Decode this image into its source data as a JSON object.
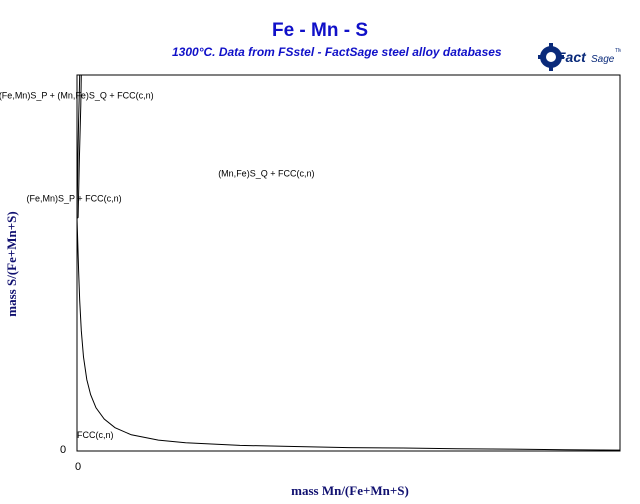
{
  "chart_data": {
    "type": "line",
    "title": "Fe - Mn - S",
    "subtitle": "1300°C.  Data from FSstel - FactSage steel alloy databases",
    "xlabel": "mass Mn/(Fe+Mn+S)",
    "ylabel": "mass S/(Fe+Mn+S)",
    "x_tick_labels": [
      "0"
    ],
    "y_tick_labels": [
      "0"
    ],
    "xlim": [
      0,
      1
    ],
    "ylim": [
      0,
      1
    ],
    "grid": false,
    "series": [
      {
        "x": [
          0.0,
          0.0015,
          0.003,
          0.005,
          0.008,
          0.012,
          0.018,
          0.025,
          0.035,
          0.05,
          0.07,
          0.1,
          0.15,
          0.2,
          0.3,
          0.4,
          0.5,
          0.6,
          0.7,
          0.8,
          0.9,
          1.0
        ],
        "y": [
          0.62,
          0.55,
          0.48,
          0.4,
          0.32,
          0.25,
          0.19,
          0.15,
          0.115,
          0.085,
          0.062,
          0.043,
          0.029,
          0.022,
          0.015,
          0.012,
          0.009,
          0.008,
          0.006,
          0.005,
          0.0035,
          0.0025
        ]
      },
      {
        "x": [
          0.0,
          0.0015,
          0.003,
          0.004,
          0.005
        ],
        "y": [
          0.62,
          0.76,
          0.88,
          0.94,
          1.0
        ]
      },
      {
        "x": [
          0.002,
          0.0045,
          0.007,
          0.008
        ],
        "y": [
          0.62,
          0.78,
          0.92,
          1.0
        ]
      },
      {
        "x": [
          0.0,
          0.002
        ],
        "y": [
          0.62,
          0.62
        ]
      }
    ],
    "annotations": [
      {
        "text": "(Fe,Mn)S_P + (Mn,Fe)S_Q + FCC(c,n)",
        "x": -0.144,
        "y": 0.937
      },
      {
        "text": "(Mn,Fe)S_Q + FCC(c,n)",
        "x": 0.26,
        "y": 0.73
      },
      {
        "text": "(Fe,Mn)S_P + FCC(c,n)",
        "x": -0.093,
        "y": 0.663
      },
      {
        "text": "FCC(c,n)",
        "x": 0.0,
        "y": 0.035
      }
    ]
  },
  "logo": {
    "text": "FactSage",
    "color": "#0a2a7a"
  }
}
